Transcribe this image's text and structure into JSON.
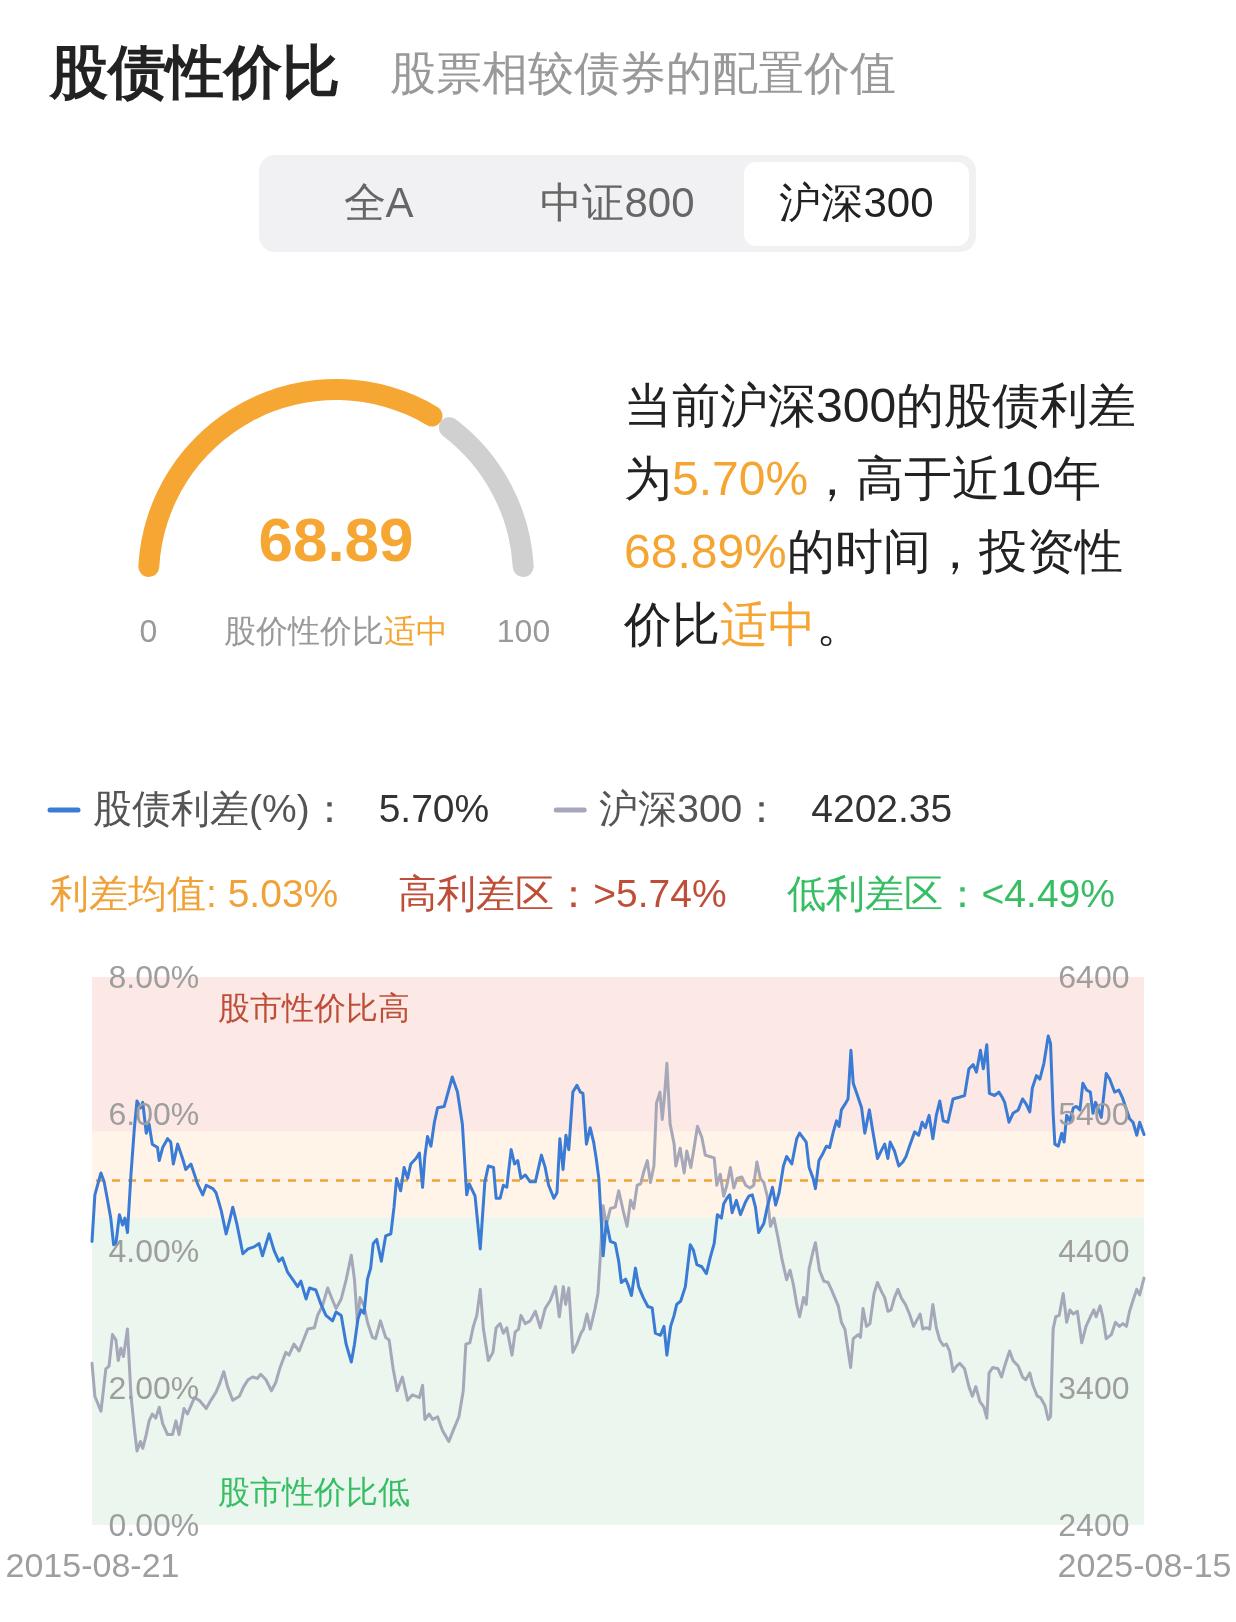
{
  "chart_data": [
    {
      "type": "other",
      "title": "股债性价比",
      "subtitle": "股票相较债券的配置价值",
      "annotations": [
        "全A",
        "中证800",
        "沪深300"
      ]
    },
    {
      "type": "donut",
      "categories": [
        null,
        null
      ],
      "values": [
        68.89,
        31.11
      ],
      "colors": [
        "#f6a633",
        "#d0d0d0"
      ],
      "value_labels": [
        "68.89",
        null
      ],
      "annotations": [
        "0",
        "股价性价比",
        "适中",
        "100"
      ]
    },
    {
      "type": "other",
      "annotations": [
        "当前沪深300的股债利差",
        "为",
        "5.70%",
        "，高于近10年",
        "68.89%",
        "的时间，投资性",
        "价比",
        "适中",
        "。"
      ],
      "colors": [
        "#222222",
        "#222222",
        "#f5a531",
        "#222222",
        "#f5a531",
        "#222222",
        "#222222",
        "#f5a531",
        "#222222"
      ]
    },
    {
      "type": "line",
      "legend": "top",
      "xlim": [
        "2015-08-21",
        "2025-08-15"
      ],
      "xticks": [
        "2015-08-21",
        "2025-08-15"
      ],
      "ylim": [
        0,
        8
      ],
      "yticks": [
        {
          "value": 0,
          "label": "0.00%"
        },
        {
          "value": 2,
          "label": "2.00%"
        },
        {
          "value": 4,
          "label": "4.00%"
        },
        {
          "value": 6,
          "label": "6.00%"
        },
        {
          "value": 8,
          "label": "8.00%"
        }
      ],
      "y2lim": [
        2400,
        6400
      ],
      "y2ticks": [
        2400,
        3400,
        4400,
        5400,
        6400
      ],
      "bands": [
        {
          "axis": "y",
          "from": 5.74,
          "to": 8,
          "label": "股市性价比高",
          "color": "#fce8e4"
        },
        {
          "axis": "y",
          "from": 4.49,
          "to": 5.74,
          "color": "#fff4e7"
        },
        {
          "axis": "y",
          "from": 0,
          "to": 4.49,
          "label": "股市性价比低",
          "color": "#eaf6ee"
        }
      ],
      "ref_lines": [
        {
          "axis": "y",
          "value": 5.03,
          "label": "利差均值: 5.03%",
          "color": "#f0a238",
          "line_style": "dashed"
        }
      ],
      "annotations": [
        "5.70%",
        "4202.35",
        "高利差区：>5.74%",
        "低利差区：<4.49%"
      ],
      "series": [
        {
          "name": "股债利差(%)：",
          "color": "#3a7bd5",
          "x": [
            "2015-08-21",
            "2015-08-31",
            "2015-09-21",
            "2015-10-02",
            "2015-10-14",
            "2015-10-25",
            "2015-11-04",
            "2015-11-12",
            "2015-11-24",
            "2015-12-05",
            "2015-12-13",
            "2015-12-22",
            "2016-01-03",
            "2016-01-15",
            "2016-01-24",
            "2016-02-05",
            "2016-02-13",
            "2016-02-25",
            "2016-03-06",
            "2016-03-17",
            "2016-04-04",
            "2016-04-10",
            "2016-04-22",
            "2016-05-09",
            "2016-05-20",
            "2016-05-29",
            "2016-06-13",
            "2016-06-30",
            "2016-07-11",
            "2016-07-29",
            "2016-08-21",
            "2016-09-08",
            "2016-09-20",
            "2016-10-13",
            "2016-10-24",
            "2016-11-11",
            "2016-11-28",
            "2016-12-09",
            "2016-12-21",
            "2017-01-05",
            "2017-01-25",
            "2017-02-12",
            "2017-03-05",
            "2017-03-22",
            "2017-04-03",
            "2017-04-26",
            "2017-05-13",
            "2017-05-30",
            "2017-06-11",
            "2017-06-29",
            "2017-07-16",
            "2017-08-03",
            "2017-08-14",
            "2017-09-01",
            "2017-09-13",
            "2017-10-05",
            "2017-10-23",
            "2017-11-09",
            "2017-12-02",
            "2017-12-14",
            "2018-01-01",
            "2018-01-18",
            "2018-02-05",
            "2018-02-16",
            "2018-02-28",
            "2018-03-11",
            "2018-03-21",
            "2018-04-02",
            "2018-04-13",
            "2018-04-22",
            "2018-05-04",
            "2018-05-20",
            "2018-06-04",
            "2018-06-22",
            "2018-07-03",
            "2018-07-12",
            "2018-07-26",
            "2018-08-07",
            "2018-08-19",
            "2018-08-30",
            "2018-09-17",
            "2018-09-29",
            "2018-10-10",
            "2018-10-18",
            "2018-10-27",
            "2018-11-08",
            "2018-11-20",
            "2018-12-01",
            "2018-12-24",
            "2019-01-21",
            "2019-02-08",
            "2019-02-25",
            "2019-03-12",
            "2019-03-21",
            "2019-04-10",
            "2019-04-28",
            "2019-05-14",
            "2019-05-26",
            "2019-06-13",
            "2019-06-22",
            "2019-07-06",
            "2019-07-17",
            "2019-07-29",
            "2019-08-13",
            "2019-08-25",
            "2019-09-05",
            "2019-09-16",
            "2019-10-01",
            "2019-10-18",
            "2019-11-05",
            "2019-11-26",
            "2019-12-09",
            "2019-12-21",
            "2020-01-08",
            "2020-01-19",
            "2020-01-29",
            "2020-02-09",
            "2020-02-19",
            "2020-02-29",
            "2020-03-14",
            "2020-03-28",
            "2020-04-09",
            "2020-04-18",
            "2020-04-30",
            "2020-05-13",
            "2020-05-25",
            "2020-06-03",
            "2020-06-12",
            "2020-06-20",
            "2020-06-27",
            "2020-07-08",
            "2020-07-22",
            "2020-08-08",
            "2020-08-20",
            "2020-08-29",
            "2020-09-13",
            "2020-09-21",
            "2020-10-03",
            "2020-10-17",
            "2020-10-28",
            "2020-11-13",
            "2020-11-29",
            "2020-12-14",
            "2020-12-25",
            "2021-01-12",
            "2021-01-24",
            "2021-02-03",
            "2021-02-16",
            "2021-02-28",
            "2021-03-09",
            "2021-03-23",
            "2021-04-08",
            "2021-04-25",
            "2021-05-06",
            "2021-05-18",
            "2021-06-04",
            "2021-06-20",
            "2021-07-03",
            "2021-07-17",
            "2021-07-28",
            "2021-08-11",
            "2021-08-19",
            "2021-08-30",
            "2021-09-09",
            "2021-09-17",
            "2021-10-02",
            "2021-10-16",
            "2021-11-03",
            "2021-11-14",
            "2021-11-26",
            "2021-12-07",
            "2021-12-18",
            "2022-01-05",
            "2022-01-17",
            "2022-02-04",
            "2022-02-15",
            "2022-02-27",
            "2022-03-14",
            "2022-03-25",
            "2022-04-12",
            "2022-04-29",
            "2022-05-09",
            "2022-06-01",
            "2022-06-11",
            "2022-06-25",
            "2022-07-03",
            "2022-07-15",
            "2022-07-26",
            "2022-08-10",
            "2022-08-21",
            "2022-09-03",
            "2022-09-14",
            "2022-09-23",
            "2022-10-01",
            "2022-10-13",
            "2022-10-24",
            "2022-11-03",
            "2022-11-11",
            "2022-11-28",
            "2022-12-10",
            "2022-12-21",
            "2023-01-06",
            "2023-01-17",
            "2023-02-03",
            "2023-02-18",
            "2023-02-28",
            "2023-03-11",
            "2023-03-19",
            "2023-04-03",
            "2023-04-18",
            "2023-05-02",
            "2023-05-13",
            "2023-05-25",
            "2023-06-12",
            "2023-06-26",
            "2023-07-08",
            "2023-07-19",
            "2023-08-01",
            "2023-08-14",
            "2023-08-26",
            "2023-09-07",
            "2023-09-19",
            "2023-10-05",
            "2023-10-23",
            "2023-11-10",
            "2023-12-02",
            "2023-12-17",
            "2024-01-01",
            "2024-01-12",
            "2024-01-26",
            "2024-02-05",
            "2024-02-17",
            "2024-02-26",
            "2024-03-15",
            "2024-03-30",
            "2024-04-11",
            "2024-04-19",
            "2024-05-04",
            "2024-05-18",
            "2024-06-05",
            "2024-06-20",
            "2024-07-03",
            "2024-07-15",
            "2024-07-24",
            "2024-08-07",
            "2024-08-19",
            "2024-09-02",
            "2024-09-17",
            "2024-09-25",
            "2024-10-04",
            "2024-10-10",
            "2024-10-22",
            "2024-11-03",
            "2024-11-11",
            "2024-11-20",
            "2024-12-01",
            "2024-12-13",
            "2024-12-24",
            "2025-01-05",
            "2025-01-15",
            "2025-01-28",
            "2025-02-10",
            "2025-02-19",
            "2025-02-28",
            "2025-03-11",
            "2025-03-20",
            "2025-04-06",
            "2025-04-18",
            "2025-05-05",
            "2025-05-20",
            "2025-06-01",
            "2025-06-13",
            "2025-06-26",
            "2025-07-08",
            "2025-07-21",
            "2025-07-31",
            "2025-08-15"
          ],
          "values": [
            4.14,
            4.82,
            5.14,
            5.01,
            4.74,
            4.48,
            4.09,
            4.11,
            4.53,
            4.38,
            4.48,
            4.27,
            5.11,
            5.8,
            6.19,
            6.09,
            6.17,
            5.72,
            5.85,
            5.56,
            5.51,
            5.32,
            5.51,
            5.64,
            5.59,
            5.27,
            5.56,
            5.35,
            5.19,
            5.27,
            4.98,
            4.82,
            4.96,
            4.91,
            4.85,
            4.59,
            4.25,
            4.43,
            4.64,
            4.38,
            3.96,
            4.03,
            4.06,
            4.11,
            3.93,
            4.25,
            4.01,
            3.85,
            3.9,
            3.69,
            3.59,
            3.48,
            3.56,
            3.3,
            3.46,
            3.43,
            3.22,
            3.06,
            2.98,
            3.11,
            3.06,
            2.64,
            2.38,
            2.64,
            3.01,
            3.14,
            3.09,
            3.59,
            3.75,
            4.11,
            4.17,
            3.85,
            4.22,
            4.25,
            4.64,
            5.06,
            4.88,
            5.22,
            5.06,
            5.27,
            5.35,
            5.43,
            4.93,
            5.38,
            5.67,
            5.53,
            5.88,
            6.09,
            6.11,
            6.54,
            6.32,
            5.85,
            4.82,
            4.98,
            4.8,
            4.03,
            5.01,
            5.24,
            5.22,
            4.77,
            4.77,
            4.96,
            4.93,
            5.48,
            5.27,
            5.32,
            5.06,
            5.11,
            5.01,
            5.01,
            5.4,
            5.22,
            4.96,
            4.77,
            4.85,
            5.64,
            5.19,
            5.69,
            5.48,
            6.32,
            6.42,
            6.32,
            6.3,
            5.56,
            5.8,
            5.59,
            5.35,
            5.06,
            4.48,
            3.93,
            4.43,
            4.14,
            4.11,
            3.85,
            3.54,
            3.59,
            3.51,
            3.35,
            3.75,
            3.48,
            3.32,
            3.19,
            3.17,
            2.8,
            2.77,
            2.9,
            2.48,
            2.9,
            3.06,
            3.22,
            3.27,
            3.48,
            4.09,
            4.01,
            3.8,
            3.77,
            3.67,
            3.9,
            4.11,
            4.53,
            4.48,
            4.69,
            4.77,
            4.82,
            4.56,
            4.74,
            4.53,
            4.72,
            4.8,
            4.82,
            4.64,
            4.27,
            4.4,
            4.64,
            4.93,
            4.67,
            4.85,
            5.24,
            5.38,
            5.27,
            5.64,
            5.72,
            5.59,
            5.22,
            5.06,
            4.91,
            5.32,
            5.4,
            5.53,
            5.51,
            5.74,
            5.9,
            5.82,
            6.06,
            6.14,
            6.22,
            6.93,
            6.45,
            6.24,
            6.09,
            5.72,
            6.06,
            5.77,
            5.35,
            5.48,
            5.56,
            5.35,
            5.59,
            5.46,
            5.24,
            5.3,
            5.38,
            5.53,
            5.74,
            5.69,
            5.88,
            5.8,
            5.98,
            5.64,
            5.98,
            6.19,
            5.9,
            5.88,
            6.22,
            6.24,
            6.27,
            6.66,
            6.72,
            6.61,
            6.93,
            6.66,
            7.01,
            6.3,
            6.27,
            6.32,
            6.24,
            6.17,
            5.88,
            6.01,
            6.06,
            6.22,
            6.14,
            6.03,
            6.38,
            6.56,
            6.51,
            6.74,
            7.14,
            7.03,
            6.01,
            5.56,
            5.53,
            5.72,
            5.59,
            5.98,
            5.9,
            6.09,
            6.11,
            6.06,
            6.45,
            6.35,
            6.32,
            6.01,
            6.17,
            6.06,
            5.95,
            6.59,
            6.51,
            6.32,
            6.35,
            6.24,
            6.09,
            5.93,
            5.88,
            5.69,
            5.88,
            5.7
          ]
        },
        {
          "name": "沪深300：",
          "color": "#a6a8ba",
          "axis": "y2",
          "x": [
            "2015-08-21",
            "2015-08-31",
            "2015-09-21",
            "2015-10-08",
            "2015-10-19",
            "2015-10-31",
            "2015-11-12",
            "2015-11-20",
            "2015-11-29",
            "2015-12-08",
            "2015-12-22",
            "2016-01-03",
            "2016-01-15",
            "2016-01-24",
            "2016-02-05",
            "2016-02-13",
            "2016-02-25",
            "2016-03-06",
            "2016-03-17",
            "2016-03-29",
            "2016-04-10",
            "2016-04-22",
            "2016-05-09",
            "2016-05-26",
            "2016-06-07",
            "2016-06-18",
            "2016-07-05",
            "2016-07-17",
            "2016-08-10",
            "2016-08-27",
            "2016-09-20",
            "2016-10-06",
            "2016-10-24",
            "2016-11-05",
            "2016-11-20",
            "2016-12-03",
            "2016-12-21",
            "2017-01-13",
            "2017-01-28",
            "2017-02-12",
            "2017-02-28",
            "2017-03-16",
            "2017-03-28",
            "2017-04-15",
            "2017-05-04",
            "2017-05-19",
            "2017-06-03",
            "2017-06-23",
            "2017-07-04",
            "2017-07-21",
            "2017-08-08",
            "2017-08-23",
            "2017-09-07",
            "2017-09-30",
            "2017-10-11",
            "2017-10-28",
            "2017-11-15",
            "2017-12-02",
            "2017-12-14",
            "2018-01-01",
            "2018-01-18",
            "2018-02-05",
            "2018-02-16",
            "2018-02-26",
            "2018-03-07",
            "2018-03-21",
            "2018-04-02",
            "2018-04-19",
            "2018-04-30",
            "2018-05-17",
            "2018-06-04",
            "2018-06-16",
            "2018-06-30",
            "2018-07-14",
            "2018-08-01",
            "2018-08-19",
            "2018-09-05",
            "2018-09-29",
            "2018-10-10",
            "2018-10-18",
            "2018-11-02",
            "2018-11-14",
            "2018-12-01",
            "2018-12-18",
            "2019-01-09",
            "2019-01-26",
            "2019-02-13",
            "2019-02-28",
            "2019-03-09",
            "2019-03-23",
            "2019-04-04",
            "2019-04-16",
            "2019-04-28",
            "2019-05-09",
            "2019-05-26",
            "2019-06-11",
            "2019-06-22",
            "2019-07-06",
            "2019-07-17",
            "2019-07-29",
            "2019-08-16",
            "2019-08-27",
            "2019-09-08",
            "2019-09-16",
            "2019-10-01",
            "2019-10-18",
            "2019-11-05",
            "2019-11-22",
            "2019-12-09",
            "2019-12-27",
            "2020-01-14",
            "2020-01-27",
            "2020-02-10",
            "2020-02-18",
            "2020-02-29",
            "2020-03-14",
            "2020-03-28",
            "2020-04-11",
            "2020-04-20",
            "2020-05-02",
            "2020-05-13",
            "2020-05-30",
            "2020-06-09",
            "2020-06-17",
            "2020-06-27",
            "2020-07-08",
            "2020-07-22",
            "2020-08-08",
            "2020-08-20",
            "2020-09-05",
            "2020-09-18",
            "2020-09-30",
            "2020-10-11",
            "2020-10-23",
            "2020-11-04",
            "2020-11-15",
            "2020-11-27",
            "2020-12-08",
            "2020-12-20",
            "2020-12-29",
            "2021-01-10",
            "2021-01-18",
            "2021-01-26",
            "2021-02-03",
            "2021-02-14",
            "2021-02-28",
            "2021-03-06",
            "2021-03-21",
            "2021-04-04",
            "2021-04-13",
            "2021-04-27",
            "2021-05-08",
            "2021-05-20",
            "2021-06-04",
            "2021-06-16",
            "2021-07-01",
            "2021-07-17",
            "2021-07-26",
            "2021-08-07",
            "2021-08-19",
            "2021-08-30",
            "2021-09-11",
            "2021-09-23",
            "2021-10-04",
            "2021-10-21",
            "2021-11-03",
            "2021-11-18",
            "2021-12-01",
            "2021-12-12",
            "2021-12-24",
            "2022-01-05",
            "2022-01-17",
            "2022-01-28",
            "2022-02-09",
            "2022-02-23",
            "2022-03-08",
            "2022-03-25",
            "2022-04-06",
            "2022-04-18",
            "2022-04-29",
            "2022-05-09",
            "2022-05-23",
            "2022-06-01",
            "2022-06-11",
            "2022-06-25",
            "2022-07-03",
            "2022-07-17",
            "2022-08-01",
            "2022-08-16",
            "2022-08-27",
            "2022-09-08",
            "2022-09-20",
            "2022-10-01",
            "2022-10-13",
            "2022-11-02",
            "2022-11-11",
            "2022-11-28",
            "2022-12-06",
            "2022-12-15",
            "2022-12-27",
            "2023-01-08",
            "2023-01-22",
            "2023-02-03",
            "2023-02-18",
            "2023-02-28",
            "2023-03-11",
            "2023-03-22",
            "2023-04-03",
            "2023-04-15",
            "2023-04-26",
            "2023-05-11",
            "2023-05-25",
            "2023-06-08",
            "2023-07-01",
            "2023-07-10",
            "2023-07-22",
            "2023-08-03",
            "2023-08-14",
            "2023-08-26",
            "2023-09-07",
            "2023-09-19",
            "2023-09-30",
            "2023-10-11",
            "2023-10-23",
            "2023-11-04",
            "2023-11-15",
            "2023-12-02",
            "2023-12-17",
            "2023-12-29",
            "2024-01-10",
            "2024-01-24",
            "2024-02-07",
            "2024-02-17",
            "2024-02-25",
            "2024-03-09",
            "2024-03-27",
            "2024-04-08",
            "2024-04-19",
            "2024-05-06",
            "2024-05-18",
            "2024-06-05",
            "2024-06-20",
            "2024-07-01",
            "2024-07-15",
            "2024-07-26",
            "2024-08-10",
            "2024-08-21",
            "2024-09-06",
            "2024-09-17",
            "2024-09-25",
            "2024-10-04",
            "2024-10-13",
            "2024-10-25",
            "2024-11-08",
            "2024-11-20",
            "2024-12-01",
            "2024-12-13",
            "2024-12-27",
            "2025-01-11",
            "2025-01-26",
            "2025-02-10",
            "2025-02-22",
            "2025-03-02",
            "2025-03-16",
            "2025-03-25",
            "2025-04-06",
            "2025-04-24",
            "2025-05-08",
            "2025-05-22",
            "2025-06-03",
            "2025-06-15",
            "2025-06-26",
            "2025-07-08",
            "2025-07-21",
            "2025-07-31",
            "2025-08-15"
          ],
          "values": [
            3580,
            3340,
            3230,
            3540,
            3560,
            3790,
            3750,
            3600,
            3690,
            3630,
            3830,
            3350,
            3100,
            2940,
            3010,
            2960,
            3060,
            3160,
            3210,
            3180,
            3260,
            3140,
            3060,
            3060,
            3160,
            3060,
            3250,
            3210,
            3330,
            3310,
            3250,
            3310,
            3370,
            3430,
            3520,
            3410,
            3310,
            3340,
            3410,
            3460,
            3480,
            3470,
            3500,
            3460,
            3380,
            3440,
            3550,
            3660,
            3640,
            3720,
            3670,
            3750,
            3830,
            3840,
            3930,
            4000,
            4130,
            4040,
            3980,
            4050,
            4190,
            4370,
            4190,
            3880,
            4060,
            4000,
            3880,
            3770,
            3760,
            3890,
            3770,
            3750,
            3540,
            3380,
            3480,
            3310,
            3350,
            3330,
            3420,
            3170,
            3210,
            3170,
            3190,
            3090,
            3010,
            3100,
            3190,
            3380,
            3720,
            3730,
            3850,
            3930,
            4120,
            3830,
            3600,
            3660,
            3840,
            3870,
            3800,
            3840,
            3640,
            3810,
            3830,
            3930,
            3870,
            3890,
            3960,
            3840,
            3980,
            4040,
            4140,
            3920,
            4140,
            4010,
            4130,
            3660,
            3720,
            3800,
            3830,
            3940,
            3830,
            3980,
            4090,
            4350,
            4730,
            4590,
            4710,
            4720,
            4840,
            4690,
            4580,
            4770,
            4710,
            4880,
            4890,
            4980,
            5060,
            4900,
            5020,
            5480,
            5560,
            5360,
            5540,
            5770,
            5330,
            5180,
            5020,
            5150,
            4970,
            5130,
            5010,
            5150,
            5310,
            5230,
            5100,
            5090,
            5080,
            4880,
            4960,
            4800,
            4880,
            5010,
            4860,
            4930,
            4940,
            4880,
            4860,
            4880,
            5050,
            4930,
            4900,
            4800,
            4580,
            4640,
            4500,
            4350,
            4190,
            4260,
            4150,
            4010,
            3920,
            4060,
            4010,
            4270,
            4400,
            4460,
            4260,
            4180,
            4170,
            4120,
            4060,
            4000,
            3880,
            3830,
            3550,
            3760,
            3790,
            3770,
            3980,
            3850,
            3870,
            4090,
            4170,
            4100,
            4060,
            3960,
            3970,
            4060,
            4120,
            4060,
            4010,
            3940,
            3850,
            3940,
            3830,
            3840,
            3830,
            4010,
            3840,
            3750,
            3710,
            3720,
            3670,
            3520,
            3560,
            3580,
            3540,
            3410,
            3340,
            3410,
            3300,
            3260,
            3180,
            3510,
            3550,
            3540,
            3480,
            3560,
            3670,
            3600,
            3560,
            3480,
            3460,
            3510,
            3420,
            3340,
            3330,
            3270,
            3170,
            3190,
            3830,
            3920,
            3930,
            4090,
            3880,
            3970,
            3940,
            3960,
            3730,
            3850,
            3920,
            3970,
            3920,
            4000,
            3920,
            3760,
            3790,
            3880,
            3850,
            3870,
            3850,
            3960,
            4040,
            4120,
            4080,
            4202.35
          ]
        }
      ]
    }
  ]
}
